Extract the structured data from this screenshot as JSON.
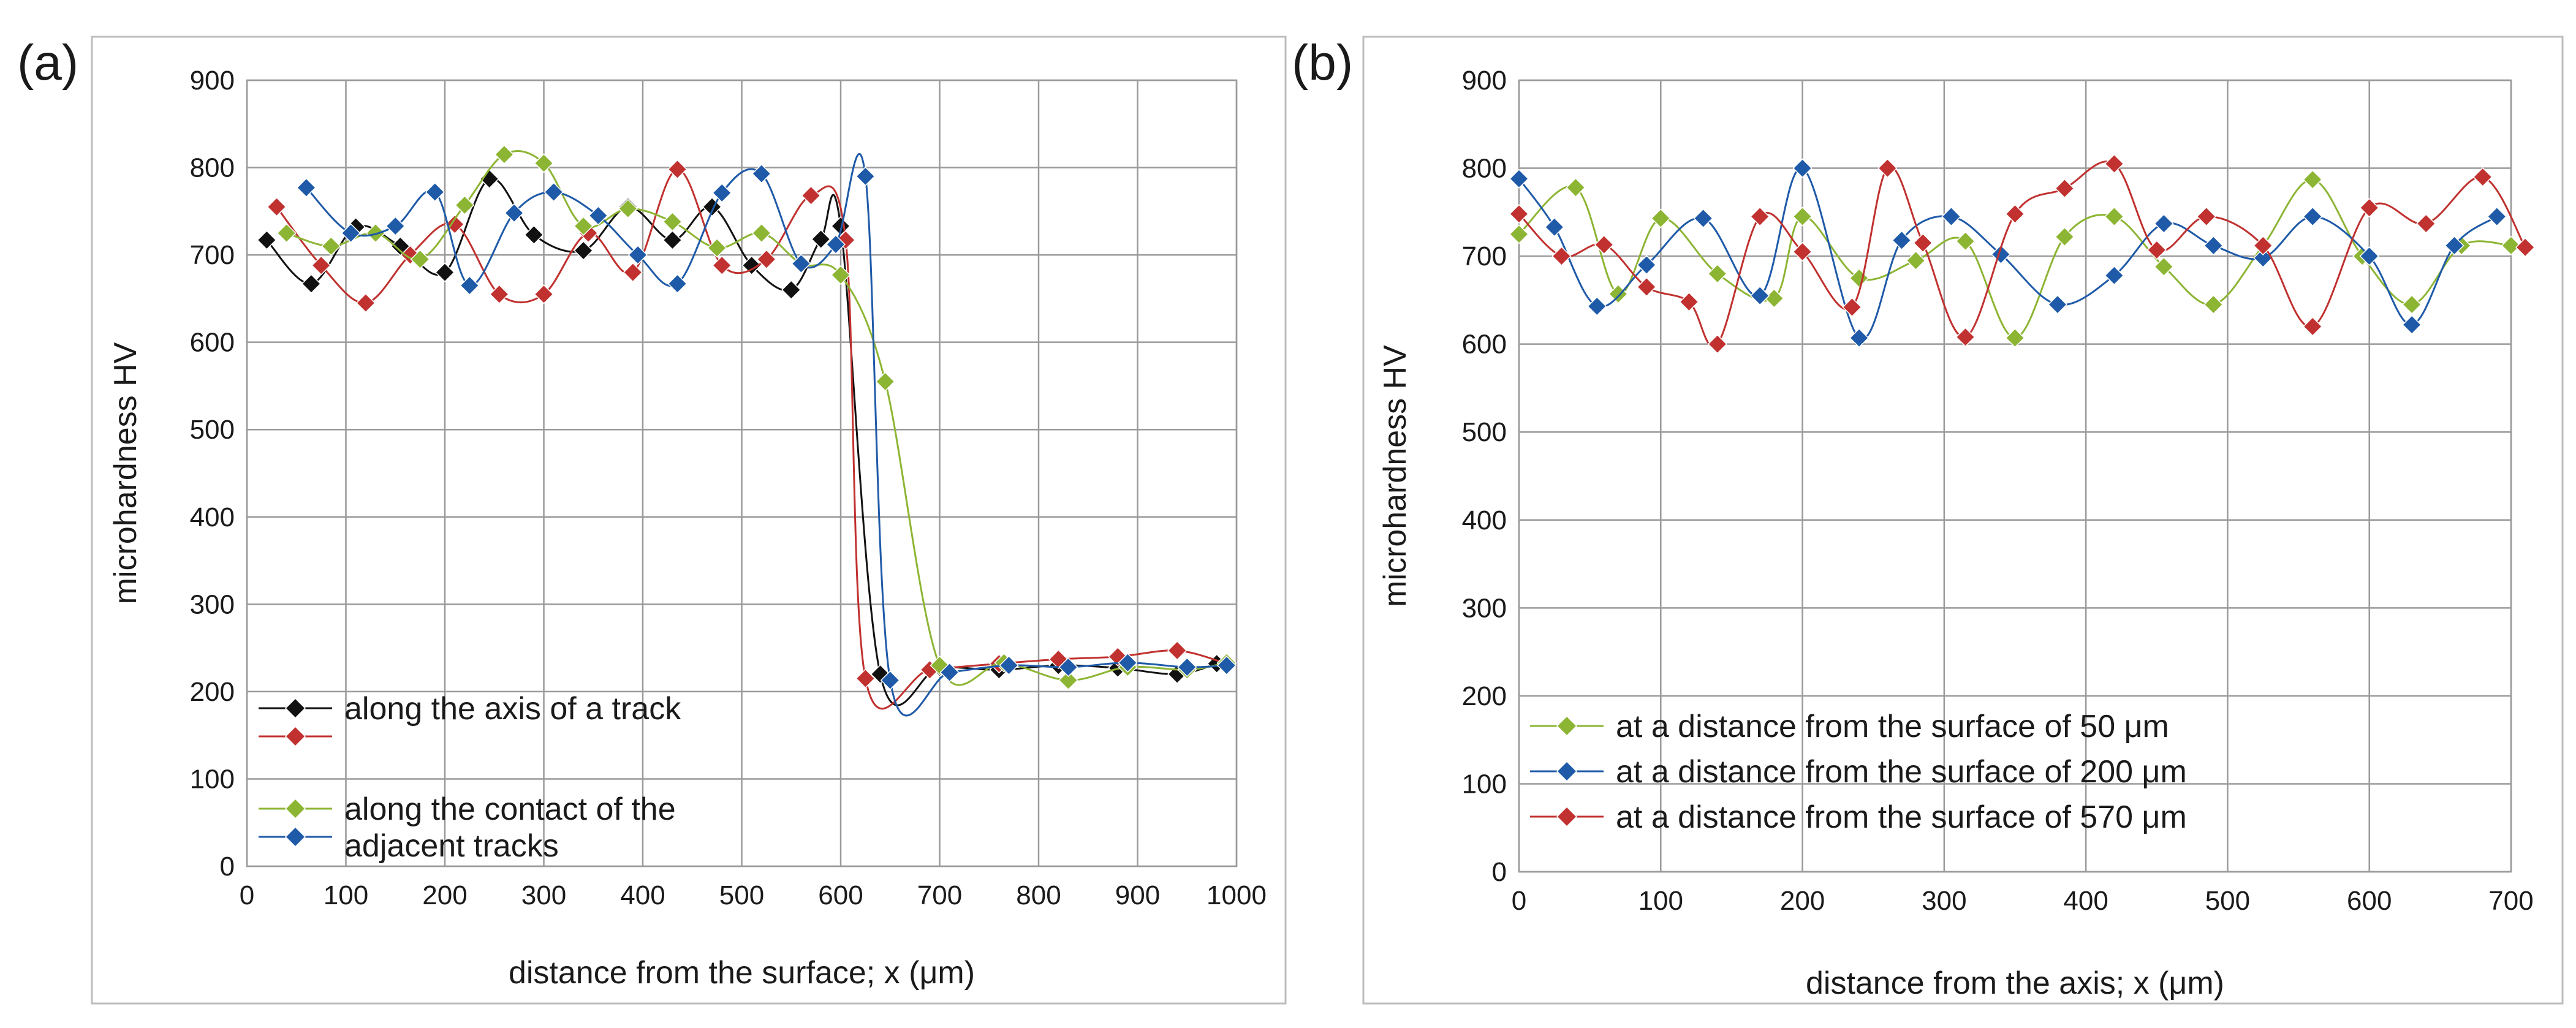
{
  "panel_labels": {
    "a": "(a)",
    "b": "(b)"
  },
  "colors": {
    "black": "#111111",
    "red": "#c0312f",
    "green": "#8db534",
    "blue": "#1f5aa8",
    "grid": "#9a9a9a",
    "frame": "#bdbdbd"
  },
  "chart_data": [
    {
      "type": "line",
      "title": "",
      "xlabel": "distance from the surface; x (μm)",
      "ylabel": "microhardness HV",
      "xlim": [
        0,
        1000
      ],
      "ylim": [
        0,
        900
      ],
      "xticks": [
        0,
        100,
        200,
        300,
        400,
        500,
        600,
        700,
        800,
        900,
        1000
      ],
      "yticks": [
        0,
        100,
        200,
        300,
        400,
        500,
        600,
        700,
        800,
        900
      ],
      "legend_position": "bottom-left",
      "legend": [
        {
          "entries": [
            0,
            1
          ],
          "text": [
            "along the axis of a track"
          ]
        },
        {
          "entries": [
            2,
            3
          ],
          "text": [
            "along the contact of the",
            "adjacent tracks"
          ]
        }
      ],
      "series": [
        {
          "name": "along the axis of a track",
          "color": "black",
          "x": [
            20,
            65,
            110,
            155,
            200,
            245,
            290,
            340,
            385,
            430,
            470,
            510,
            550,
            580,
            600,
            640,
            700,
            760,
            820,
            880,
            940,
            980
          ],
          "y": [
            717,
            667,
            732,
            710,
            680,
            787,
            723,
            705,
            755,
            717,
            755,
            688,
            660,
            718,
            733,
            220,
            228,
            225,
            230,
            227,
            220,
            232
          ]
        },
        {
          "name": "along the axis of a track",
          "color": "red",
          "x": [
            30,
            75,
            120,
            165,
            210,
            255,
            300,
            345,
            390,
            435,
            480,
            525,
            570,
            605,
            625,
            690,
            760,
            820,
            880,
            940,
            990
          ],
          "y": [
            755,
            688,
            645,
            700,
            735,
            655,
            655,
            725,
            680,
            798,
            688,
            695,
            768,
            717,
            215,
            225,
            232,
            237,
            240,
            247,
            232
          ]
        },
        {
          "name": "along the contact of the adjacent tracks",
          "color": "green",
          "x": [
            40,
            85,
            130,
            175,
            220,
            260,
            300,
            340,
            385,
            430,
            475,
            520,
            560,
            600,
            645,
            700,
            765,
            830,
            890,
            950,
            990
          ],
          "y": [
            725,
            710,
            725,
            695,
            757,
            815,
            805,
            733,
            753,
            738,
            708,
            725,
            690,
            677,
            555,
            230,
            233,
            213,
            228,
            225,
            233
          ]
        },
        {
          "name": "along the contact of the adjacent tracks",
          "color": "blue",
          "x": [
            60,
            105,
            150,
            190,
            225,
            270,
            310,
            355,
            395,
            435,
            480,
            520,
            560,
            595,
            625,
            650,
            710,
            770,
            830,
            890,
            950,
            990
          ],
          "y": [
            777,
            725,
            733,
            772,
            665,
            748,
            772,
            745,
            700,
            667,
            771,
            793,
            690,
            712,
            790,
            213,
            222,
            230,
            228,
            233,
            228,
            230
          ]
        }
      ]
    },
    {
      "type": "line",
      "title": "",
      "xlabel": "distance from the axis; x (μm)",
      "ylabel": "microhardness HV",
      "xlim": [
        0,
        700
      ],
      "ylim": [
        0,
        900
      ],
      "xticks": [
        0,
        100,
        200,
        300,
        400,
        500,
        600,
        700
      ],
      "yticks": [
        0,
        100,
        200,
        300,
        400,
        500,
        600,
        700,
        800,
        900
      ],
      "legend_position": "bottom-left",
      "legend": [
        {
          "entries": [
            0
          ],
          "text": [
            "at a distance from the surface of 50 μm"
          ]
        },
        {
          "entries": [
            1
          ],
          "text": [
            "at a distance from the surface of 200 μm"
          ]
        },
        {
          "entries": [
            2
          ],
          "text": [
            "at a distance from the surface of 570 μm"
          ]
        }
      ],
      "series": [
        {
          "name": "at a distance from the surface of 50 μm",
          "color": "green",
          "x": [
            0,
            40,
            70,
            100,
            140,
            180,
            200,
            240,
            280,
            315,
            350,
            385,
            420,
            455,
            490,
            525,
            560,
            595,
            630,
            665,
            700
          ],
          "y": [
            725,
            778,
            657,
            743,
            680,
            652,
            745,
            675,
            695,
            717,
            607,
            722,
            745,
            688,
            645,
            712,
            787,
            700,
            645,
            712,
            712
          ]
        },
        {
          "name": "at a distance from the surface of 200 μm",
          "color": "blue",
          "x": [
            0,
            25,
            55,
            90,
            130,
            170,
            200,
            240,
            270,
            305,
            340,
            380,
            420,
            455,
            490,
            525,
            560,
            600,
            630,
            660,
            690
          ],
          "y": [
            788,
            733,
            643,
            690,
            743,
            655,
            800,
            607,
            718,
            745,
            702,
            645,
            678,
            737,
            712,
            698,
            745,
            700,
            622,
            712,
            745
          ]
        },
        {
          "name": "at a distance from the surface of 570 μm",
          "color": "red",
          "x": [
            0,
            30,
            60,
            90,
            120,
            140,
            170,
            200,
            235,
            260,
            285,
            315,
            350,
            385,
            420,
            450,
            485,
            525,
            560,
            600,
            640,
            680,
            710
          ],
          "y": [
            748,
            700,
            713,
            665,
            648,
            600,
            745,
            705,
            642,
            800,
            715,
            608,
            748,
            777,
            805,
            707,
            745,
            712,
            620,
            755,
            737,
            790,
            710
          ]
        }
      ]
    }
  ]
}
